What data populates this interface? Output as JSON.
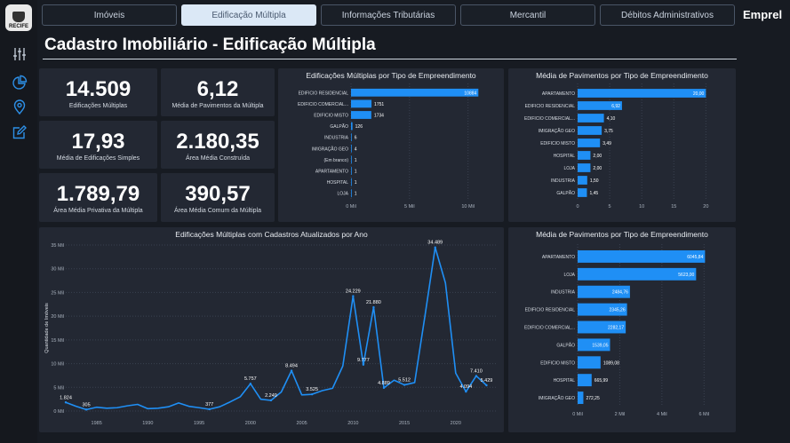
{
  "brand": "Emprel",
  "logo_text": "RECIFE",
  "page_title": "Cadastro Imobiliário - Edificação Múltipla",
  "nav": [
    {
      "label": "Imóveis",
      "active": false
    },
    {
      "label": "Edificação Múltipla",
      "active": true
    },
    {
      "label": "Informações Tributárias",
      "active": false
    },
    {
      "label": "Mercantil",
      "active": false
    },
    {
      "label": "Débitos Administrativos",
      "active": false
    }
  ],
  "sidebar_icons": [
    "sliders-icon",
    "pie-chart-icon",
    "map-pin-icon",
    "edit-icon"
  ],
  "kpis": [
    {
      "value": "14.509",
      "label": "Edificações Múltiplas"
    },
    {
      "value": "6,12",
      "label": "Média de Pavimentos da Múltipla"
    },
    {
      "value": "17,93",
      "label": "Média de Edificações Simples"
    },
    {
      "value": "2.180,35",
      "label": "Área Média Construída"
    },
    {
      "value": "1.789,79",
      "label": "Área Média Privativa da Múltipla"
    },
    {
      "value": "390,57",
      "label": "Área Média Comum da Múltipla"
    }
  ],
  "colors": {
    "bar": "#1f8ff5",
    "background": "#171b22",
    "card": "#232833"
  },
  "chart_data": [
    {
      "type": "bar",
      "orientation": "horizontal",
      "title": "Edificações Múltiplas por Tipo de Empreendimento",
      "categories": [
        "EDIFICIO RESIDENCIAL",
        "EDIFICIO COMERCIAL...",
        "EDIFICIO MISTO",
        "GALPÃO",
        "INDUSTRIA",
        "IMIGRAÇÃO GEO",
        "(Em branco)",
        "APARTAMENTO",
        "HOSPITAL",
        "LOJA"
      ],
      "values": [
        10884,
        1751,
        1734,
        126,
        6,
        4,
        1,
        1,
        1,
        1
      ],
      "value_labels": [
        "10884",
        "1751",
        "1734",
        "126",
        "6",
        "4",
        "1",
        "1",
        "1",
        "1"
      ],
      "xlim": [
        0,
        12000
      ],
      "xticks": [
        0,
        5000,
        10000
      ],
      "xtick_labels": [
        "0 Mil",
        "5 Mil",
        "10 Mil"
      ],
      "grid": true
    },
    {
      "type": "bar",
      "orientation": "horizontal",
      "title": "Média de Pavimentos por Tipo de Empreendimento",
      "categories": [
        "APARTAMENTO",
        "EDIFICIO RESIDENCIAL",
        "EDIFICIO COMERCIAL...",
        "IMIGRAÇÃO GEO",
        "EDIFICIO MISTO",
        "HOSPITAL",
        "LOJA",
        "INDUSTRIA",
        "GALPÃO"
      ],
      "values": [
        20.0,
        6.92,
        4.1,
        3.75,
        3.49,
        2.0,
        2.0,
        1.5,
        1.45
      ],
      "value_labels": [
        "20,00",
        "6,92",
        "4,10",
        "3,75",
        "3,49",
        "2,00",
        "2,00",
        "1,50",
        "1,45"
      ],
      "xlim": [
        0,
        23
      ],
      "xticks": [
        0,
        5,
        10,
        15,
        20
      ],
      "xtick_labels": [
        "0",
        "5",
        "10",
        "15",
        "20"
      ],
      "grid": true
    },
    {
      "type": "line",
      "title": "Edificações Múltiplas com Cadastros Atualizados por Ano",
      "ylabel": "Quantidade de Imóveis",
      "x": [
        1982,
        1983,
        1984,
        1985,
        1986,
        1987,
        1988,
        1989,
        1990,
        1991,
        1992,
        1993,
        1994,
        1995,
        1996,
        1997,
        1998,
        1999,
        2000,
        2001,
        2002,
        2003,
        2004,
        2005,
        2006,
        2007,
        2008,
        2009,
        2010,
        2011,
        2012,
        2013,
        2014,
        2015,
        2016,
        2017,
        2018,
        2019,
        2020,
        2021,
        2022,
        2023
      ],
      "values": [
        1824,
        1000,
        305,
        800,
        600,
        700,
        1100,
        1400,
        500,
        600,
        900,
        1700,
        1000,
        700,
        377,
        900,
        1900,
        3000,
        5757,
        2500,
        2249,
        4000,
        8494,
        3400,
        3525,
        4300,
        4800,
        9500,
        24229,
        9777,
        21880,
        4889,
        6500,
        5512,
        6000,
        20000,
        34489,
        27000,
        8000,
        4094,
        7410,
        5429
      ],
      "point_labels": {
        "1982": "1.824",
        "1984": "305",
        "1996": "377",
        "2000": "5.757",
        "2002": "2.249",
        "2004": "8.494",
        "2006": "3.525",
        "2010": "24.229",
        "2011": "9.777",
        "2012": "21.880",
        "2013": "4.889",
        "2015": "5.512",
        "2018": "34.489",
        "2021": "4.094",
        "2022": "7.410",
        "2023": "5.429"
      },
      "xlim": [
        1982,
        2024
      ],
      "xticks": [
        1985,
        1990,
        1995,
        2000,
        2005,
        2010,
        2015,
        2020
      ],
      "xtick_labels": [
        "1985",
        "1990",
        "1995",
        "2000",
        "2005",
        "2010",
        "2015",
        "2020"
      ],
      "ylim": [
        0,
        35000
      ],
      "yticks": [
        0,
        5000,
        10000,
        15000,
        20000,
        25000,
        30000,
        35000
      ],
      "ytick_labels": [
        "0 Mil",
        "5 Mil",
        "10 Mil",
        "15 Mil",
        "20 Mil",
        "25 Mil",
        "30 Mil",
        "35 Mil"
      ],
      "grid": true
    },
    {
      "type": "bar",
      "orientation": "horizontal",
      "title": "Média de Pavimentos por Tipo de Empreendimento",
      "categories": [
        "APARTAMENTO",
        "LOJA",
        "INDUSTRIA",
        "EDIFICIO RESIDENCIAL",
        "EDIFICIO COMERCIAL...",
        "GALPÃO",
        "EDIFICIO MISTO",
        "HOSPITAL",
        "IMIGRAÇÃO GEO"
      ],
      "values": [
        6045.84,
        5623.0,
        2484.76,
        2345.26,
        2282.17,
        1539.05,
        1089.08,
        665.99,
        272.25
      ],
      "value_labels": [
        "6045,84",
        "5623,00",
        "2484,76",
        "2345,26",
        "2282,17",
        "1539,05",
        "1089,08",
        "665,99",
        "272,25"
      ],
      "xlim": [
        0,
        7000
      ],
      "xticks": [
        0,
        2000,
        4000,
        6000
      ],
      "xtick_labels": [
        "0 Mil",
        "2 Mil",
        "4 Mil",
        "6 Mil"
      ],
      "grid": true
    }
  ]
}
